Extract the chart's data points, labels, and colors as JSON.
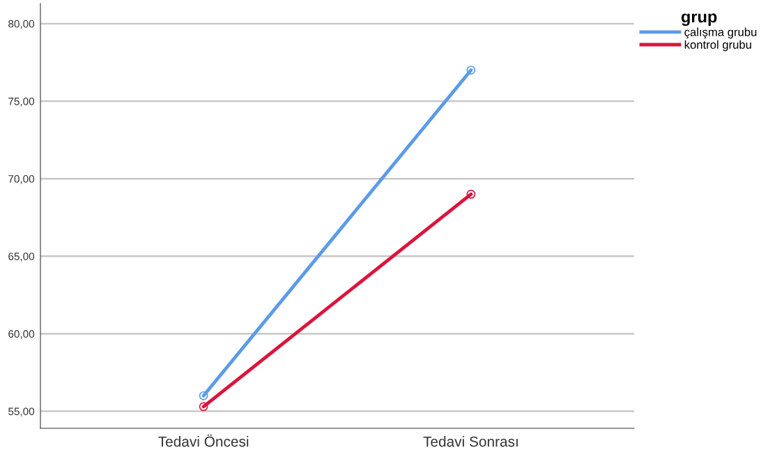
{
  "chart_data": {
    "type": "line",
    "categories": [
      "Tedavi Öncesi",
      "Tedavi Sonrası"
    ],
    "series": [
      {
        "name": "çalışma grubu",
        "color": "#5b9be8",
        "values": [
          56.0,
          77.0
        ]
      },
      {
        "name": "kontrol grubu",
        "color": "#dc143c",
        "values": [
          55.3,
          69.0
        ]
      }
    ],
    "ylim": [
      53.9,
      81.3
    ],
    "yticks": [
      {
        "value": 55,
        "label": "55,00"
      },
      {
        "value": 60,
        "label": "60,00"
      },
      {
        "value": 65,
        "label": "65,00"
      },
      {
        "value": 70,
        "label": "70,00"
      },
      {
        "value": 75,
        "label": "75,00"
      },
      {
        "value": 80,
        "label": "80,00"
      }
    ],
    "grid": "y",
    "legend": "top right",
    "legend_title": "grup",
    "marker": "circle",
    "line_style": "solid"
  }
}
